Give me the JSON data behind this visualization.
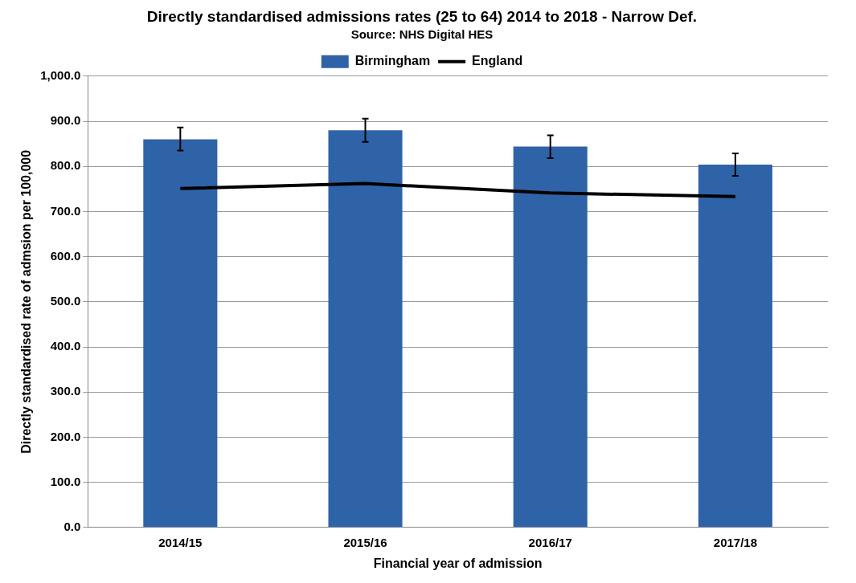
{
  "chart_data": {
    "type": "bar",
    "title": "Directly standardised admissions rates (25 to 64) 2014 to 2018 - Narrow Def.",
    "subtitle": "Source: NHS Digital HES",
    "xlabel": "Financial year of admission",
    "ylabel": "Directly standardised rate of admsion per 100,000",
    "categories": [
      "2014/15",
      "2015/16",
      "2016/17",
      "2017/18"
    ],
    "series": [
      {
        "name": "Birmingham",
        "color": "#2f63a8",
        "values": [
          860,
          880,
          844,
          804
        ],
        "errors": [
          [
            835,
            886
          ],
          [
            854,
            906
          ],
          [
            818,
            869
          ],
          [
            779,
            829
          ]
        ]
      },
      {
        "name": "England",
        "type": "line",
        "color": "#000000",
        "values": [
          751,
          762,
          741,
          733
        ]
      }
    ],
    "ylim": [
      0,
      1000
    ],
    "yticks": [
      {
        "value": 0,
        "label": "0.0"
      },
      {
        "value": 100,
        "label": "100.0"
      },
      {
        "value": 200,
        "label": "200.0"
      },
      {
        "value": 300,
        "label": "300.0"
      },
      {
        "value": 400,
        "label": "400.0"
      },
      {
        "value": 500,
        "label": "500.0"
      },
      {
        "value": 600,
        "label": "600.0"
      },
      {
        "value": 700,
        "label": "700.0"
      },
      {
        "value": 800,
        "label": "800.0"
      },
      {
        "value": 900,
        "label": "900.0"
      },
      {
        "value": 1000,
        "label": "1,000.0"
      }
    ],
    "grid": "y",
    "legend": "top",
    "marker": "none"
  }
}
